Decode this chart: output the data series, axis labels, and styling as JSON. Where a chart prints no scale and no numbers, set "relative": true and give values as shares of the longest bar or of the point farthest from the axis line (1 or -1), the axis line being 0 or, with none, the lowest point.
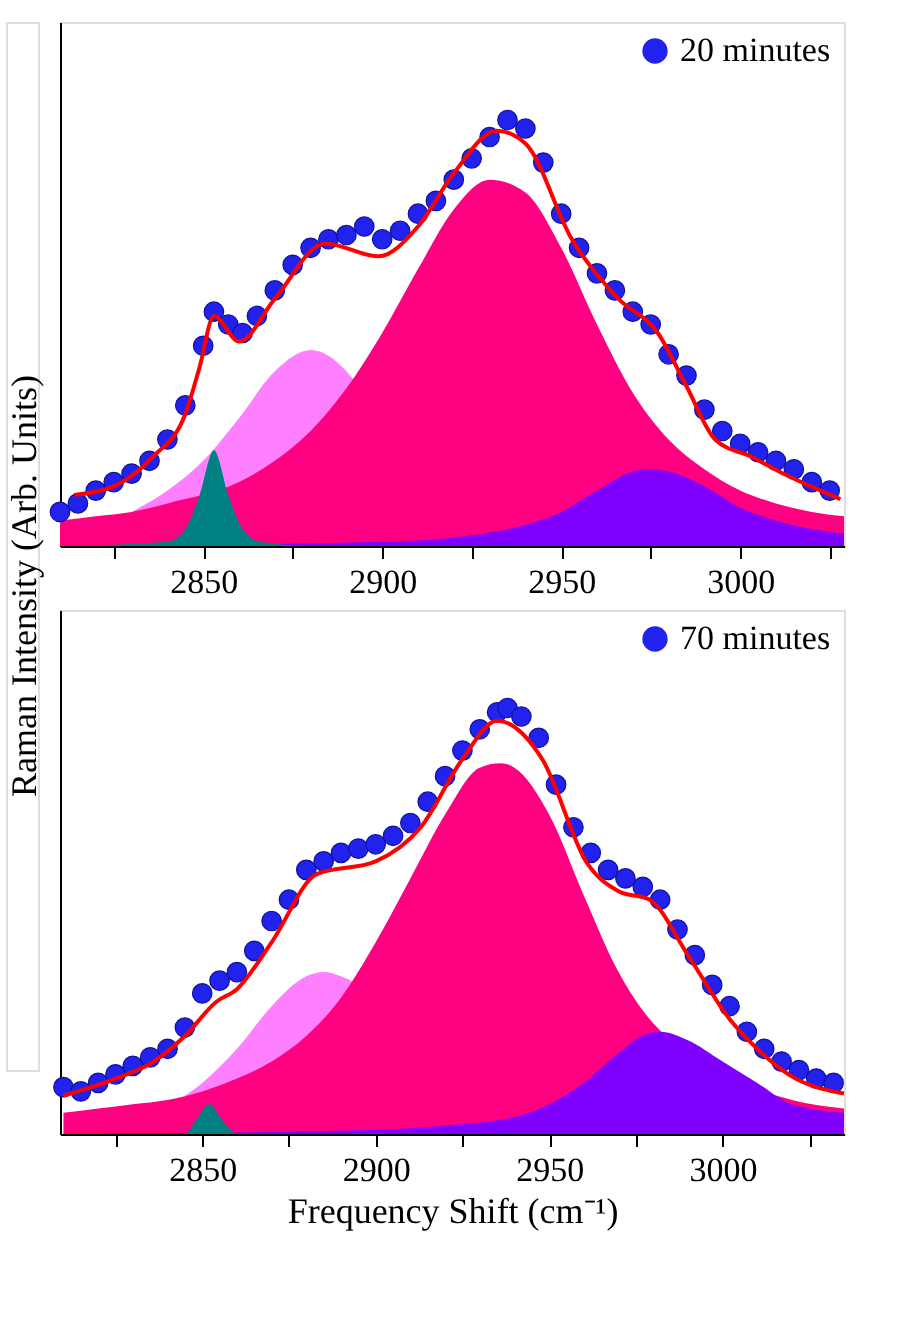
{
  "chart_data": [
    {
      "type": "area",
      "relative": true,
      "ylabel": "Raman Intensity (Arb. Units)",
      "legend": "top right",
      "xlim": [
        2810,
        3029
      ],
      "xticks": [
        {
          "value": 2825,
          "label": null
        },
        2850,
        {
          "value": 2875,
          "label": null
        },
        2900,
        {
          "value": 2925,
          "label": null
        },
        2950,
        {
          "value": 2975,
          "label": null
        },
        3000,
        {
          "value": 3025,
          "label": null
        }
      ],
      "series": [
        {
          "color": "#ff80ff",
          "x": [
            2830,
            2840,
            2850,
            2860,
            2870,
            2880,
            2890,
            2892
          ],
          "values": [
            0.08,
            0.13,
            0.2,
            0.3,
            0.41,
            0.46,
            0.41,
            0.39
          ]
        },
        {
          "color": "#ff0080",
          "x": [
            2810,
            2820,
            2830,
            2840,
            2860,
            2870,
            2880,
            2890,
            2900,
            2910,
            2920,
            2930,
            2940,
            2950,
            2960,
            2970,
            2980,
            2990,
            3000,
            3010,
            3020,
            3029
          ],
          "values": [
            0.06,
            0.07,
            0.08,
            0.1,
            0.15,
            0.2,
            0.27,
            0.37,
            0.5,
            0.65,
            0.79,
            0.86,
            0.83,
            0.7,
            0.52,
            0.36,
            0.25,
            0.18,
            0.13,
            0.1,
            0.08,
            0.07
          ]
        },
        {
          "color": "#8000ff",
          "x": [
            2810,
            2900,
            2920,
            2940,
            2950,
            2960,
            2970,
            2974,
            2980,
            2990,
            3000,
            3010,
            3020,
            3029
          ],
          "values": [
            0.0,
            0.01,
            0.02,
            0.05,
            0.08,
            0.13,
            0.175,
            0.18,
            0.175,
            0.14,
            0.09,
            0.06,
            0.04,
            0.03
          ]
        },
        {
          "color": "#008080",
          "x": [
            2810,
            2840,
            2845,
            2849,
            2853,
            2857,
            2861,
            2866,
            2880,
            3029
          ],
          "values": [
            0.0,
            0.01,
            0.04,
            0.12,
            0.225,
            0.12,
            0.04,
            0.01,
            0.0,
            0.0
          ]
        },
        {
          "type": "scatter",
          "name": "20 minutes",
          "color": "#2222ee",
          "marker": "circle",
          "x": [
            2810,
            2815,
            2820,
            2825,
            2830,
            2835,
            2840,
            2845,
            2850,
            2853,
            2857,
            2861,
            2865,
            2870,
            2875,
            2880,
            2885,
            2890,
            2895,
            2900,
            2905,
            2910,
            2915,
            2920,
            2925,
            2930,
            2935,
            2940,
            2945,
            2950,
            2955,
            2960,
            2965,
            2970,
            2975,
            2980,
            2985,
            2990,
            2995,
            3000,
            3005,
            3010,
            3015,
            3020,
            3025
          ],
          "values": [
            0.08,
            0.1,
            0.13,
            0.15,
            0.17,
            0.2,
            0.25,
            0.33,
            0.47,
            0.55,
            0.52,
            0.5,
            0.54,
            0.6,
            0.66,
            0.7,
            0.72,
            0.73,
            0.75,
            0.72,
            0.74,
            0.78,
            0.81,
            0.86,
            0.91,
            0.96,
            1.0,
            0.98,
            0.9,
            0.78,
            0.7,
            0.64,
            0.6,
            0.55,
            0.52,
            0.45,
            0.4,
            0.32,
            0.27,
            0.24,
            0.22,
            0.2,
            0.18,
            0.15,
            0.13
          ]
        },
        {
          "type": "line",
          "color": "#ff0000",
          "x": [
            2814,
            2825,
            2836,
            2845,
            2849,
            2853,
            2860,
            2870,
            2884,
            2899,
            2910,
            2920,
            2932,
            2940,
            2953,
            2966,
            2977,
            2985,
            2993,
            3003,
            3012,
            3028
          ],
          "values": [
            0.12,
            0.14,
            0.21,
            0.31,
            0.42,
            0.54,
            0.48,
            0.58,
            0.71,
            0.68,
            0.75,
            0.875,
            0.975,
            0.945,
            0.72,
            0.58,
            0.5,
            0.375,
            0.25,
            0.21,
            0.17,
            0.11
          ]
        }
      ]
    },
    {
      "type": "area",
      "relative": true,
      "xlabel": "Frequency Shift (cm⁻¹)",
      "legend": "top right",
      "xlim": [
        2809,
        3035
      ],
      "xticks": [
        {
          "value": 2825,
          "label": null
        },
        2850,
        {
          "value": 2875,
          "label": null
        },
        2900,
        {
          "value": 2925,
          "label": null
        },
        2950,
        {
          "value": 2975,
          "label": null
        },
        3000,
        {
          "value": 3025,
          "label": null
        }
      ],
      "series": [
        {
          "color": "#ff80ff",
          "x": [
            2845,
            2850,
            2860,
            2870,
            2880,
            2885,
            2890,
            2894
          ],
          "values": [
            0.09,
            0.12,
            0.2,
            0.3,
            0.37,
            0.38,
            0.37,
            0.355
          ]
        },
        {
          "color": "#ff0080",
          "x": [
            2810,
            2820,
            2830,
            2840,
            2850,
            2860,
            2870,
            2880,
            2890,
            2900,
            2910,
            2920,
            2930,
            2936,
            2940,
            2950,
            2960,
            2970,
            2980,
            3020,
            3035
          ],
          "values": [
            0.05,
            0.06,
            0.07,
            0.08,
            0.1,
            0.13,
            0.17,
            0.23,
            0.32,
            0.45,
            0.6,
            0.75,
            0.86,
            0.87,
            0.86,
            0.75,
            0.56,
            0.38,
            0.26,
            0.08,
            0.06
          ]
        },
        {
          "color": "#8000ff",
          "x": [
            2810,
            2900,
            2920,
            2940,
            2950,
            2960,
            2970,
            2978,
            2982,
            2990,
            3000,
            3010,
            3020,
            3035
          ],
          "values": [
            0.0,
            0.01,
            0.02,
            0.04,
            0.07,
            0.12,
            0.19,
            0.235,
            0.24,
            0.22,
            0.17,
            0.12,
            0.07,
            0.05
          ]
        },
        {
          "color": "#008080",
          "x": [
            2810,
            2845,
            2848,
            2852,
            2856,
            2860,
            3035
          ],
          "values": [
            0.0,
            0.0,
            0.03,
            0.07,
            0.03,
            0.0,
            0.0
          ]
        },
        {
          "type": "scatter",
          "name": "70 minutes",
          "color": "#2222ee",
          "marker": "circle",
          "x": [
            2810,
            2815,
            2820,
            2825,
            2830,
            2835,
            2840,
            2845,
            2850,
            2855,
            2860,
            2865,
            2870,
            2875,
            2880,
            2885,
            2890,
            2895,
            2900,
            2905,
            2910,
            2915,
            2920,
            2925,
            2930,
            2935,
            2938,
            2942,
            2947,
            2952,
            2957,
            2962,
            2967,
            2972,
            2977,
            2982,
            2987,
            2992,
            2997,
            3002,
            3007,
            3012,
            3017,
            3022,
            3027,
            3032
          ],
          "values": [
            0.11,
            0.1,
            0.12,
            0.14,
            0.16,
            0.18,
            0.2,
            0.25,
            0.33,
            0.36,
            0.38,
            0.43,
            0.5,
            0.55,
            0.62,
            0.64,
            0.66,
            0.67,
            0.68,
            0.7,
            0.73,
            0.78,
            0.84,
            0.9,
            0.95,
            0.99,
            1.0,
            0.98,
            0.93,
            0.82,
            0.72,
            0.66,
            0.62,
            0.6,
            0.58,
            0.55,
            0.48,
            0.42,
            0.35,
            0.3,
            0.24,
            0.2,
            0.17,
            0.15,
            0.13,
            0.12
          ]
        },
        {
          "type": "line",
          "color": "#ff0000",
          "x": [
            2810,
            2825,
            2836,
            2845,
            2854,
            2860,
            2870,
            2883,
            2900,
            2913,
            2925,
            2935,
            2948,
            2961,
            2970,
            2979,
            2990,
            3002,
            3010,
            3019,
            3035
          ],
          "values": [
            0.09,
            0.13,
            0.17,
            0.23,
            0.31,
            0.34,
            0.45,
            0.61,
            0.64,
            0.72,
            0.88,
            0.97,
            0.88,
            0.635,
            0.57,
            0.55,
            0.42,
            0.27,
            0.2,
            0.14,
            0.095
          ]
        }
      ]
    }
  ]
}
